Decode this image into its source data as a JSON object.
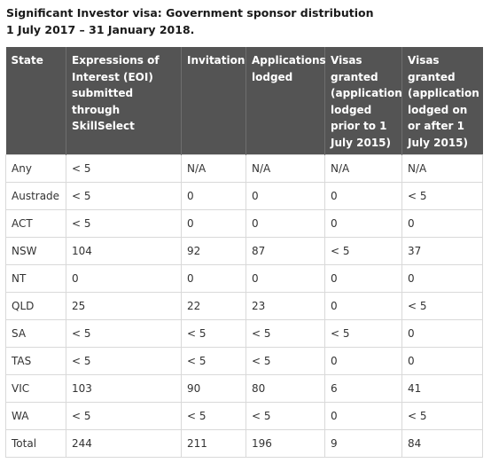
{
  "caption": {
    "line1": "Significant Investor visa: Government sponsor distribution",
    "line2": "1 July 2017 – 31 January 2018."
  },
  "table": {
    "headers": [
      "State",
      "Expressions of Interest (EOI) submitted through SkillSelect",
      "Invitation",
      "Applications lodged",
      "Visas granted (application lodged prior to 1 July 2015)",
      "Visas granted (application lodged on or after 1 July 2015)"
    ],
    "rows": [
      [
        "Any",
        "< 5",
        "N/A",
        "N/A",
        "N/A",
        "N/A"
      ],
      [
        "Austrade",
        "< 5",
        "0",
        "0",
        "0",
        "< 5"
      ],
      [
        "ACT",
        "< 5",
        "0",
        "0",
        "0",
        "0"
      ],
      [
        "NSW",
        "104",
        "92",
        "87",
        "< 5",
        "37"
      ],
      [
        "NT",
        "0",
        "0",
        "0",
        "0",
        "0"
      ],
      [
        "QLD",
        "25",
        "22",
        "23",
        "0",
        "< 5"
      ],
      [
        "SA",
        "< 5",
        "< 5",
        "< 5",
        "< 5",
        "0"
      ],
      [
        "TAS",
        "< 5",
        "< 5",
        "< 5",
        "0",
        "0"
      ],
      [
        "VIC",
        "103",
        "90",
        "80",
        "6",
        "41"
      ],
      [
        "WA",
        "< 5",
        "< 5",
        "< 5",
        "0",
        "< 5"
      ],
      [
        "Total",
        "244",
        "211",
        "196",
        "9",
        "84"
      ]
    ]
  },
  "colors": {
    "header_background": "#545454",
    "header_text": "#ffffff",
    "border": "#d9d9d9"
  }
}
